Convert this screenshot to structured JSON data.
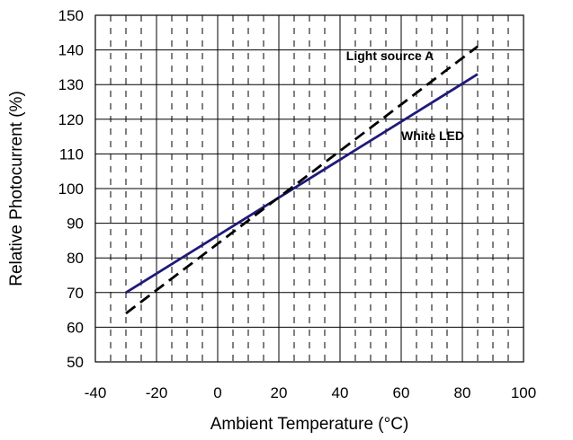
{
  "chart_data": {
    "type": "line",
    "title": "",
    "xlabel": "Ambient Temperature (°C)",
    "ylabel": "Relative Photocurrent (%)",
    "xlim": [
      -40,
      100
    ],
    "ylim": [
      50,
      150
    ],
    "xticks": [
      -40,
      -20,
      0,
      20,
      40,
      60,
      80,
      100
    ],
    "yticks": [
      50,
      60,
      70,
      80,
      90,
      100,
      110,
      120,
      130,
      140,
      150
    ],
    "x_minor_step": 5,
    "grid": true,
    "legend": "none",
    "series": [
      {
        "name": "White LED",
        "style": "solid",
        "color": "#1f1a7a",
        "x": [
          -30,
          85
        ],
        "y": [
          70,
          133
        ]
      },
      {
        "name": "Light source  A",
        "style": "dashed",
        "color": "#000000",
        "x": [
          -30,
          85
        ],
        "y": [
          64,
          141
        ]
      }
    ],
    "annotations": [
      {
        "text": "Light source  A",
        "x": 42,
        "y": 137
      },
      {
        "text": "White LED",
        "x": 60,
        "y": 114
      }
    ]
  }
}
